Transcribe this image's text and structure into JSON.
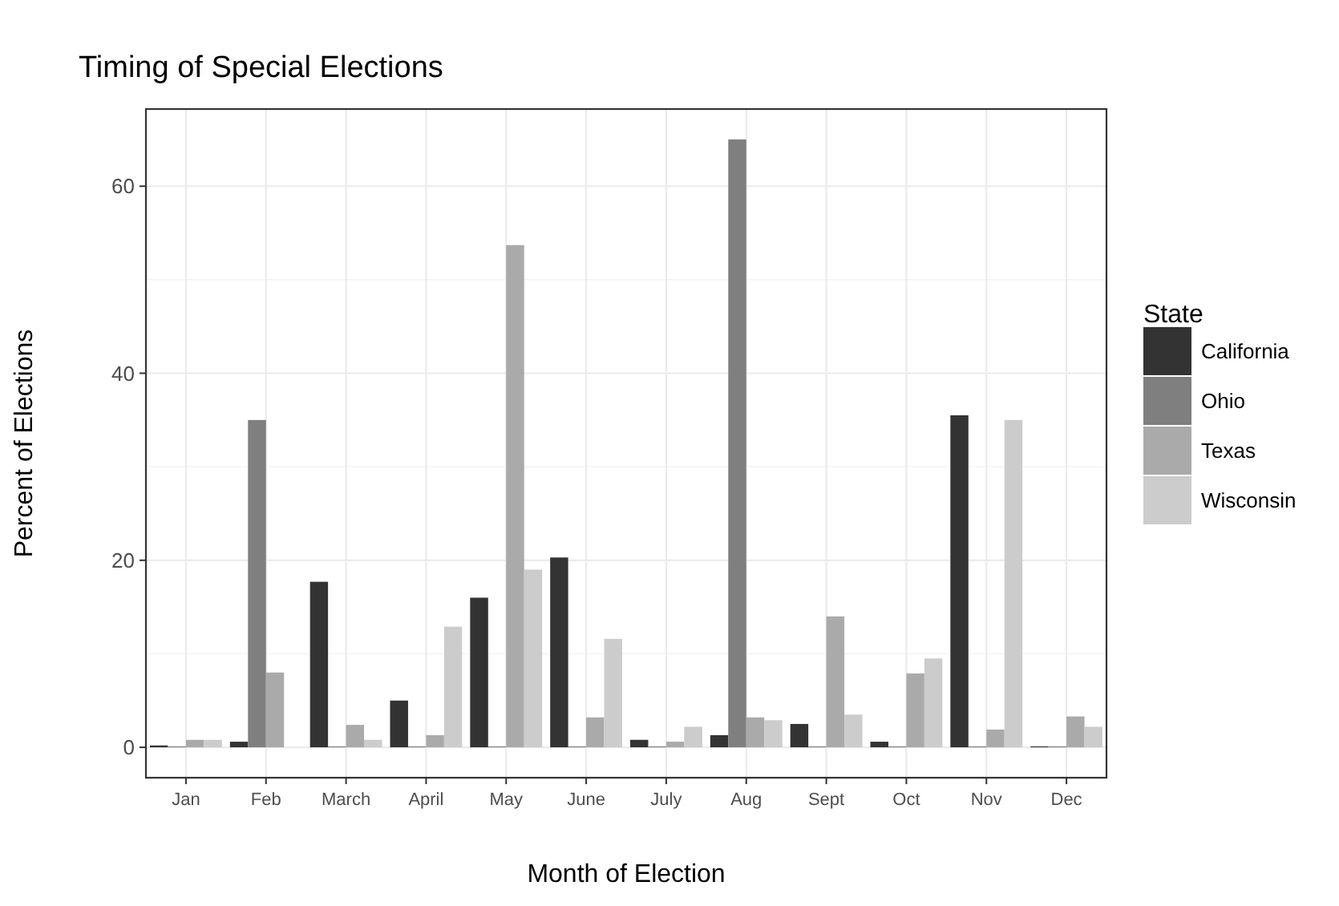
{
  "chart_data": {
    "type": "bar",
    "title": "Timing of Special Elections",
    "xlabel": "Month of Election",
    "ylabel": "Percent of Elections",
    "legend_title": "State",
    "categories": [
      "Jan",
      "Feb",
      "March",
      "April",
      "May",
      "June",
      "July",
      "Aug",
      "Sept",
      "Oct",
      "Nov",
      "Dec"
    ],
    "series": [
      {
        "name": "California",
        "color": "#333333",
        "values": [
          0.2,
          0.6,
          17.7,
          5,
          16,
          20.3,
          0.8,
          1.3,
          2.5,
          0.6,
          35.5,
          0.1
        ]
      },
      {
        "name": "Ohio",
        "color": "#7f7f7f",
        "values": [
          0.1,
          35,
          0.1,
          0.1,
          0.1,
          0.1,
          0.1,
          65,
          0.1,
          0.1,
          0.1,
          0.1
        ]
      },
      {
        "name": "Texas",
        "color": "#aaaaaa",
        "values": [
          0.8,
          8,
          2.4,
          1.3,
          53.7,
          3.2,
          0.6,
          3.2,
          14,
          7.9,
          1.9,
          3.3
        ]
      },
      {
        "name": "Wisconsin",
        "color": "#cccccc",
        "values": [
          0.8,
          null,
          0.8,
          12.9,
          19,
          11.6,
          2.2,
          2.9,
          3.5,
          9.5,
          35,
          2.2
        ]
      }
    ],
    "ylim": [
      -3.25,
      68.25
    ],
    "yticks": [
      0,
      20,
      40,
      60
    ],
    "grid": true,
    "legend": "right"
  }
}
